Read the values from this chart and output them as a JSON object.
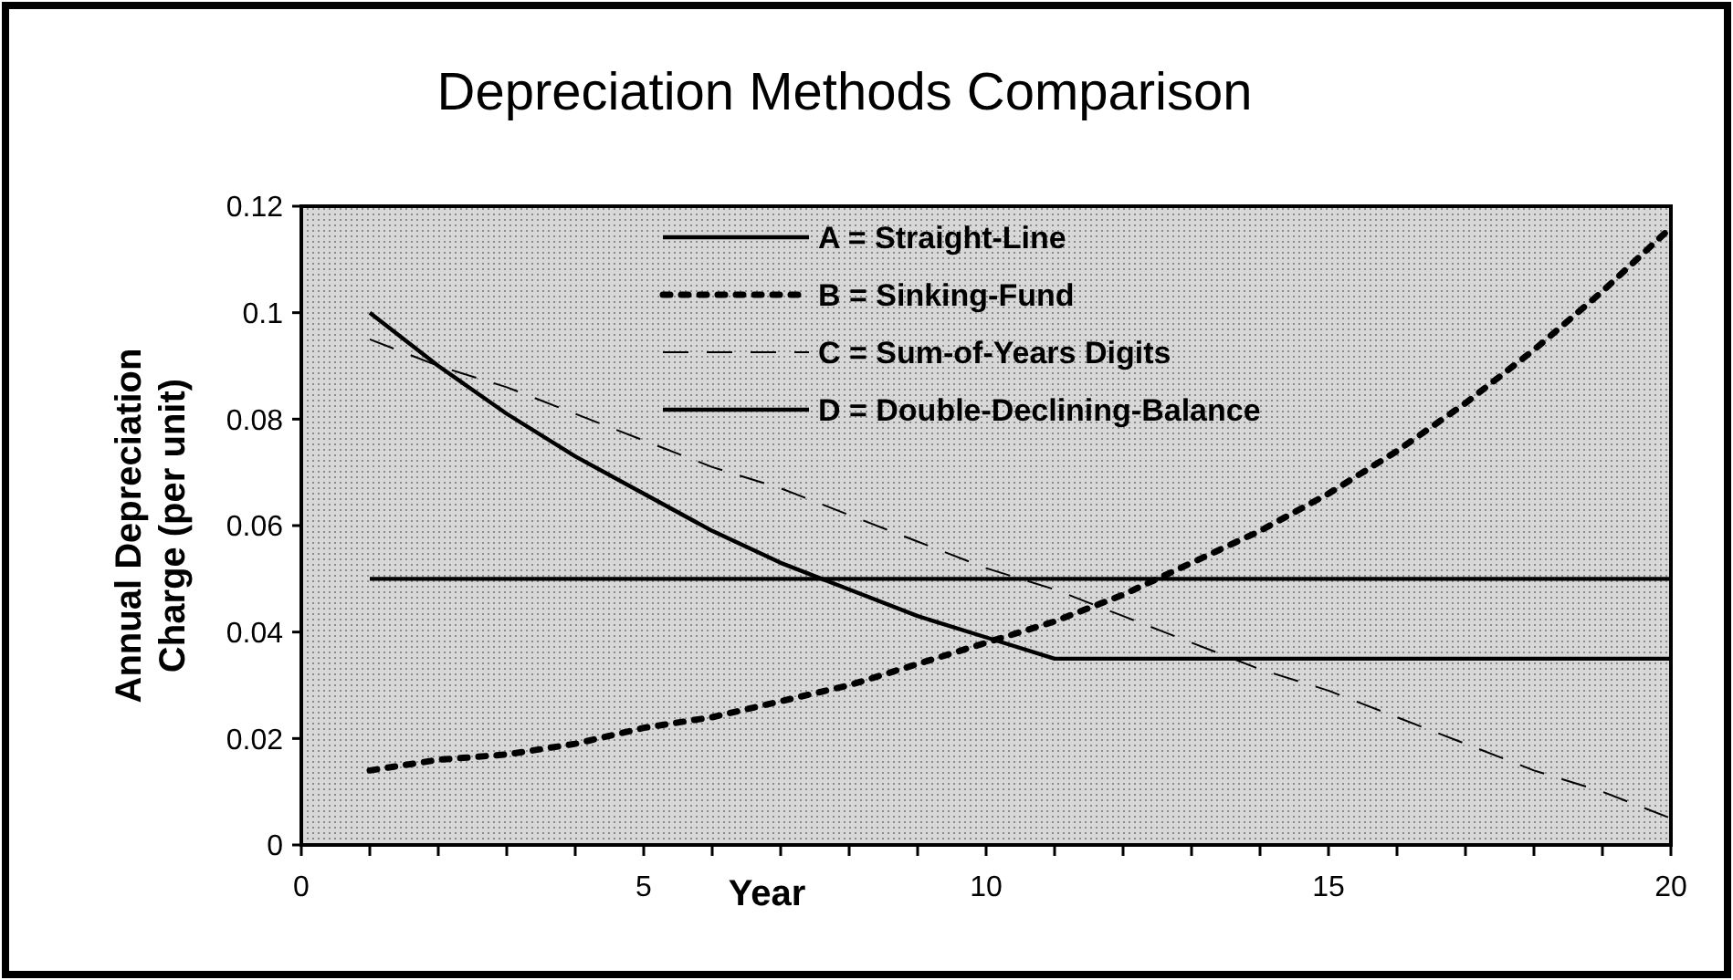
{
  "chart_data": {
    "type": "line",
    "title": "Depreciation Methods Comparison",
    "xlabel": "Year",
    "ylabel": "Annual Depreciation Charge (per unit)",
    "x": [
      1,
      2,
      3,
      4,
      5,
      6,
      7,
      8,
      9,
      10,
      11,
      12,
      13,
      14,
      15,
      16,
      17,
      18,
      19,
      20
    ],
    "series": [
      {
        "name": "A = Straight-Line",
        "color": "#000000",
        "line_style": "solid",
        "values": [
          0.05,
          0.05,
          0.05,
          0.05,
          0.05,
          0.05,
          0.05,
          0.05,
          0.05,
          0.05,
          0.05,
          0.05,
          0.05,
          0.05,
          0.05,
          0.05,
          0.05,
          0.05,
          0.05,
          0.05
        ]
      },
      {
        "name": "B = Sinking-Fund",
        "color": "#000000",
        "line_style": "dotted",
        "values": [
          0.014,
          0.016,
          0.017,
          0.019,
          0.022,
          0.024,
          0.027,
          0.03,
          0.034,
          0.038,
          0.042,
          0.047,
          0.053,
          0.059,
          0.066,
          0.074,
          0.083,
          0.093,
          0.104,
          0.116
        ]
      },
      {
        "name": "C = Sum-of-Years Digits",
        "color": "#000000",
        "line_style": "dashed",
        "values": [
          0.095,
          0.09,
          0.086,
          0.081,
          0.076,
          0.071,
          0.067,
          0.062,
          0.057,
          0.052,
          0.048,
          0.043,
          0.038,
          0.033,
          0.029,
          0.024,
          0.019,
          0.014,
          0.01,
          0.005
        ]
      },
      {
        "name": "D = Double-Declining-Balance",
        "color": "#000000",
        "line_style": "solid",
        "values": [
          0.1,
          0.09,
          0.081,
          0.073,
          0.066,
          0.059,
          0.053,
          0.048,
          0.043,
          0.039,
          0.035,
          0.035,
          0.035,
          0.035,
          0.035,
          0.035,
          0.035,
          0.035,
          0.035,
          0.035
        ]
      }
    ],
    "xlim": [
      0,
      20
    ],
    "xticks": [
      0,
      {
        "value": 1,
        "label": null
      },
      {
        "value": 2,
        "label": null
      },
      {
        "value": 3,
        "label": null
      },
      {
        "value": 4,
        "label": null
      },
      5,
      {
        "value": 6,
        "label": null
      },
      {
        "value": 7,
        "label": null
      },
      {
        "value": 8,
        "label": null
      },
      {
        "value": 9,
        "label": null
      },
      10,
      {
        "value": 11,
        "label": null
      },
      {
        "value": 12,
        "label": null
      },
      {
        "value": 13,
        "label": null
      },
      {
        "value": 14,
        "label": null
      },
      15,
      {
        "value": 16,
        "label": null
      },
      {
        "value": 17,
        "label": null
      },
      {
        "value": 18,
        "label": null
      },
      {
        "value": 19,
        "label": null
      },
      20
    ],
    "ylim": [
      0,
      0.12
    ],
    "yticks": [
      0,
      0.02,
      0.04,
      0.06,
      0.08,
      0.1,
      0.12
    ],
    "legend": "top",
    "grid": false
  }
}
